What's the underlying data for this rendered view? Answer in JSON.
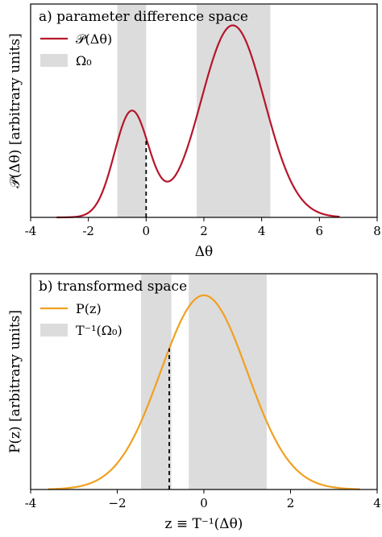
{
  "chart_data": [
    {
      "type": "line",
      "title": "a) parameter difference space",
      "xlabel": "Δθ",
      "ylabel": "𝒫(Δθ)  [arbitrary units]",
      "xlim": [
        -4,
        8
      ],
      "ylim": [
        0,
        1.1
      ],
      "xticks": [
        -4,
        -2,
        0,
        2,
        4,
        6,
        8
      ],
      "xtick_labels": [
        "-4",
        "-2",
        "0",
        "2",
        "4",
        "6",
        "8"
      ],
      "legend": {
        "placement": "top-left",
        "entries": [
          "𝒫(Δθ)",
          "Ω₀"
        ]
      },
      "series": [
        {
          "name": "𝒫(Δθ)",
          "color": "#b5162b",
          "components": [
            {
              "weight": 0.55,
              "mean": -0.5,
              "sigma": 0.6
            },
            {
              "weight": 1.0,
              "mean": 3.0,
              "sigma": 1.1
            }
          ],
          "x_range": [
            -3.1,
            6.7
          ]
        }
      ],
      "shaded_regions": [
        {
          "label": "Ω₀",
          "x": [
            -1.0,
            0.0
          ],
          "color": "#dcdcdc"
        },
        {
          "label": "Ω₀",
          "x": [
            0.0,
            0.0
          ],
          "color": "#dcdcdc"
        },
        {
          "label": "Ω₀",
          "x": [
            1.75,
            4.3
          ],
          "color": "#dcdcdc"
        }
      ],
      "shaded_ranges": [
        [
          -1.0,
          0.0
        ],
        [
          1.75,
          4.3
        ]
      ],
      "vline": {
        "x": 0.0,
        "style": "dashed"
      }
    },
    {
      "type": "line",
      "title": "b) transformed space",
      "xlabel": "z ≡ T⁻¹(Δθ)",
      "ylabel": "P(z)  [arbitrary units]",
      "xlim": [
        -4,
        4
      ],
      "ylim": [
        0,
        1.1
      ],
      "xticks": [
        -4,
        -2,
        0,
        2,
        4
      ],
      "xtick_labels": [
        "-4",
        "−2",
        "0",
        "2",
        "4"
      ],
      "legend": {
        "placement": "top-left",
        "entries": [
          "P(z)",
          "T⁻¹(Ω₀)"
        ]
      },
      "series": [
        {
          "name": "P(z)",
          "color": "#f0a020",
          "components": [
            {
              "weight": 1.0,
              "mean": 0.0,
              "sigma": 1.0
            }
          ],
          "x_range": [
            -3.6,
            3.6
          ]
        }
      ],
      "shaded_ranges": [
        [
          -1.45,
          -0.75
        ],
        [
          -0.35,
          1.45
        ]
      ],
      "vline": {
        "x": -0.8,
        "style": "dashed"
      }
    }
  ]
}
